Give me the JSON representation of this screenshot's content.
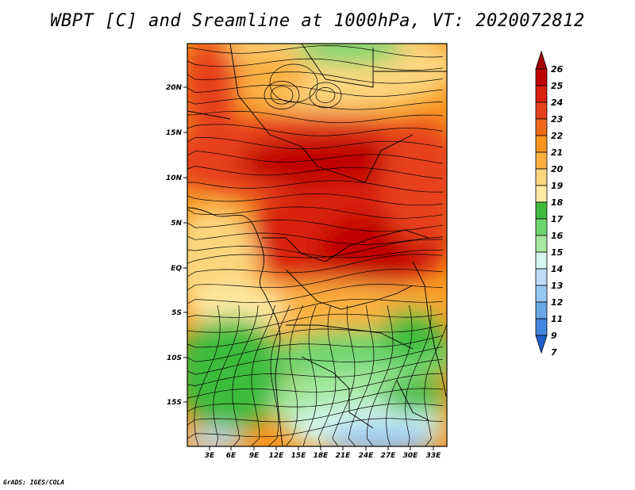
{
  "title": "WBPT [C] and Sreamline at 1000hPa, VT: 2020072812",
  "footer": "GrADS: IGES/COLA",
  "map": {
    "lat_labels": [
      "20N",
      "15N",
      "10N",
      "5N",
      "EQ",
      "5S",
      "10S",
      "15S"
    ],
    "lon_labels": [
      "3E",
      "6E",
      "9E",
      "12E",
      "15E",
      "18E",
      "21E",
      "24E",
      "27E",
      "30E",
      "33E"
    ]
  },
  "colorbar": {
    "levels": [
      "26",
      "25",
      "24",
      "23",
      "22",
      "21",
      "20",
      "19",
      "18",
      "17",
      "16",
      "15",
      "14",
      "13",
      "12",
      "11",
      "9",
      "7"
    ],
    "colors": {
      "above_26": "#a50000",
      "25_26": "#c00000",
      "24_25": "#d92010",
      "23_24": "#e6411e",
      "22_23": "#f06a1c",
      "21_22": "#f7941c",
      "20_21": "#fbb040",
      "19_20": "#fcd67f",
      "18_19": "#fdeaa4",
      "17_18": "#3dbb3d",
      "16_17": "#6ed66e",
      "15_16": "#a6e8a0",
      "14_15": "#d4f7f0",
      "13_14": "#bcdcf8",
      "12_13": "#96c6f2",
      "11_12": "#6aa8e8",
      "9_11": "#4286e0",
      "below_7": "#1f5fd0"
    }
  }
}
